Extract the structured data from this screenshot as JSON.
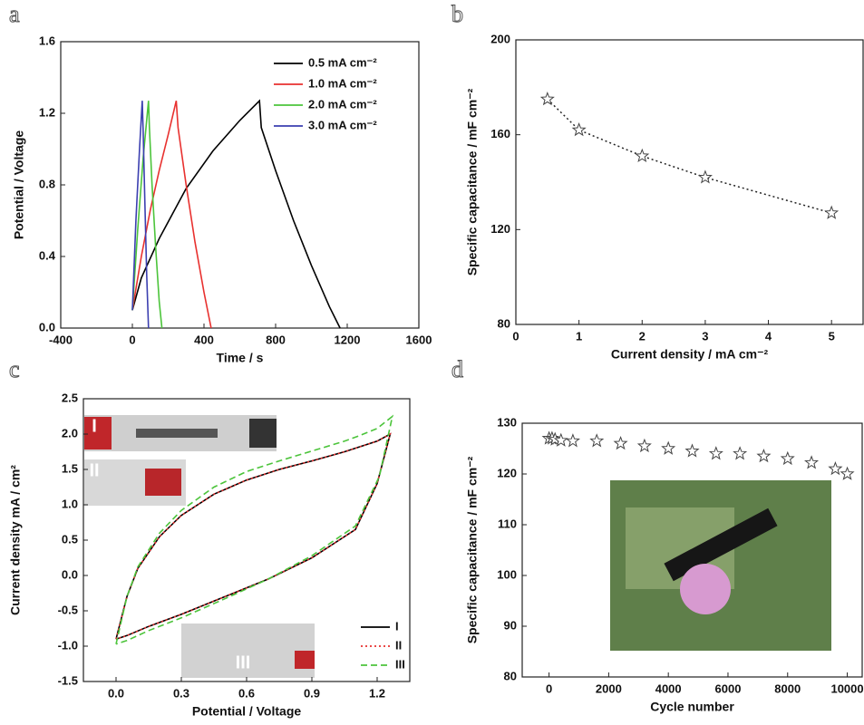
{
  "chart_data": [
    {
      "type": "line",
      "panel_label": "a",
      "x_label": "Time / s",
      "y_label": "Potential / Voltage",
      "xlim": [
        -400,
        1600
      ],
      "xticks": [
        -400,
        0,
        400,
        800,
        1200,
        1600
      ],
      "ylim": [
        0,
        1.6
      ],
      "yticks": [
        {
          "value": 0,
          "label": "0.0"
        },
        0.4,
        0.8,
        1.2,
        1.6
      ],
      "legend": "upper right",
      "series": [
        {
          "name": "0.5 mA cm⁻²",
          "color": "#000000",
          "dash": "solid",
          "x": [
            0,
            50,
            150,
            300,
            450,
            600,
            710,
            720,
            800,
            900,
            1000,
            1100,
            1160
          ],
          "values": [
            0.1,
            0.28,
            0.5,
            0.78,
            0.99,
            1.16,
            1.27,
            1.12,
            0.88,
            0.6,
            0.35,
            0.12,
            0
          ]
        },
        {
          "name": "1.0 mA cm⁻²",
          "color": "#e8312f",
          "dash": "solid",
          "x": [
            0,
            50,
            100,
            150,
            200,
            245,
            255,
            300,
            350,
            400,
            440
          ],
          "values": [
            0.1,
            0.4,
            0.66,
            0.88,
            1.08,
            1.27,
            1.12,
            0.8,
            0.48,
            0.2,
            0
          ]
        },
        {
          "name": "2.0 mA cm⁻²",
          "color": "#4cc43b",
          "dash": "solid",
          "x": [
            0,
            30,
            60,
            90,
            95,
            110,
            130,
            150,
            165
          ],
          "values": [
            0.1,
            0.55,
            0.95,
            1.27,
            1.12,
            0.8,
            0.45,
            0.15,
            0
          ]
        },
        {
          "name": "3.0 mA cm⁻²",
          "color": "#3b3fb0",
          "dash": "solid",
          "x": [
            0,
            20,
            40,
            55,
            60,
            70,
            80,
            90
          ],
          "values": [
            0.1,
            0.6,
            1.0,
            1.27,
            1.1,
            0.7,
            0.3,
            0
          ]
        }
      ]
    },
    {
      "type": "scatter",
      "panel_label": "b",
      "x_label": "Current density / mA cm⁻²",
      "y_label": "Specific capacitance / mF cm⁻²",
      "xlim": [
        0,
        5.5
      ],
      "xticks": [
        0,
        1,
        2,
        3,
        4,
        5
      ],
      "ylim": [
        80,
        200
      ],
      "yticks": [
        80,
        120,
        160,
        200
      ],
      "marker": "star",
      "line_style": "dotted",
      "x": [
        0.5,
        1,
        2,
        3,
        5
      ],
      "values": [
        175,
        162,
        151,
        142,
        127
      ]
    },
    {
      "type": "line",
      "panel_label": "c",
      "x_label": "Potential / Voltage",
      "y_label": "Current density mA / cm²",
      "xlim": [
        -0.15,
        1.35
      ],
      "xticks": [
        {
          "value": 0,
          "label": "0.0"
        },
        0.3,
        0.6,
        0.9,
        1.2
      ],
      "ylim": [
        -1.5,
        2.5
      ],
      "yticks": [
        -1.5,
        {
          "value": -1,
          "label": "-1.0"
        },
        -0.5,
        {
          "value": 0,
          "label": "0.0"
        },
        0.5,
        {
          "value": 1,
          "label": "1.0"
        },
        1.5,
        {
          "value": 2,
          "label": "2.0"
        },
        2.5
      ],
      "legend": "lower right",
      "inset_labels": [
        "I",
        "II",
        "III"
      ],
      "series": [
        {
          "name": "I",
          "color": "#000000",
          "dash": "solid",
          "x": [
            0,
            0.05,
            0.1,
            0.2,
            0.3,
            0.45,
            0.6,
            0.75,
            0.9,
            1.05,
            1.12,
            1.2,
            1.26,
            1.2,
            1.1,
            0.9,
            0.7,
            0.5,
            0.3,
            0.15,
            0.05,
            0
          ],
          "values": [
            -0.9,
            -0.3,
            0.1,
            0.55,
            0.85,
            1.15,
            1.35,
            1.5,
            1.62,
            1.75,
            1.82,
            1.9,
            2.0,
            1.3,
            0.65,
            0.25,
            -0.05,
            -0.3,
            -0.55,
            -0.72,
            -0.85,
            -0.9
          ]
        },
        {
          "name": "II",
          "color": "#e8312f",
          "dash": "dotted",
          "x": [
            0,
            0.05,
            0.1,
            0.2,
            0.3,
            0.45,
            0.6,
            0.75,
            0.9,
            1.05,
            1.12,
            1.2,
            1.26,
            1.2,
            1.1,
            0.9,
            0.7,
            0.5,
            0.3,
            0.15,
            0.05,
            0
          ],
          "values": [
            -0.9,
            -0.3,
            0.1,
            0.55,
            0.85,
            1.15,
            1.35,
            1.5,
            1.62,
            1.75,
            1.82,
            1.9,
            2.0,
            1.3,
            0.65,
            0.25,
            -0.05,
            -0.3,
            -0.55,
            -0.72,
            -0.85,
            -0.9
          ]
        },
        {
          "name": "III",
          "color": "#4cc43b",
          "dash": "dashed",
          "x": [
            0,
            0.05,
            0.1,
            0.2,
            0.3,
            0.45,
            0.6,
            0.75,
            0.9,
            1.05,
            1.12,
            1.2,
            1.27,
            1.21,
            1.1,
            0.9,
            0.7,
            0.5,
            0.3,
            0.15,
            0.05,
            0
          ],
          "values": [
            -0.97,
            -0.3,
            0.12,
            0.6,
            0.92,
            1.25,
            1.47,
            1.62,
            1.76,
            1.9,
            1.98,
            2.08,
            2.25,
            1.4,
            0.7,
            0.28,
            -0.05,
            -0.33,
            -0.6,
            -0.78,
            -0.92,
            -0.97
          ]
        }
      ]
    },
    {
      "type": "scatter",
      "panel_label": "d",
      "x_label": "Cycle number",
      "y_label": "Specific capacitance / mF cm⁻²",
      "xlim": [
        -900,
        10500
      ],
      "xticks": [
        0,
        2000,
        4000,
        6000,
        8000,
        10000
      ],
      "ylim": [
        80,
        130
      ],
      "yticks": [
        80,
        90,
        100,
        110,
        120,
        130
      ],
      "marker": "star",
      "x": [
        0,
        100,
        200,
        400,
        800,
        1600,
        2400,
        3200,
        4000,
        4800,
        5600,
        6400,
        7200,
        8000,
        8800,
        9600,
        10000
      ],
      "values": [
        127,
        127,
        126.8,
        126.6,
        126.5,
        126.5,
        126,
        125.5,
        125,
        124.5,
        124,
        124,
        123.5,
        123,
        122.2,
        121,
        120
      ]
    }
  ]
}
